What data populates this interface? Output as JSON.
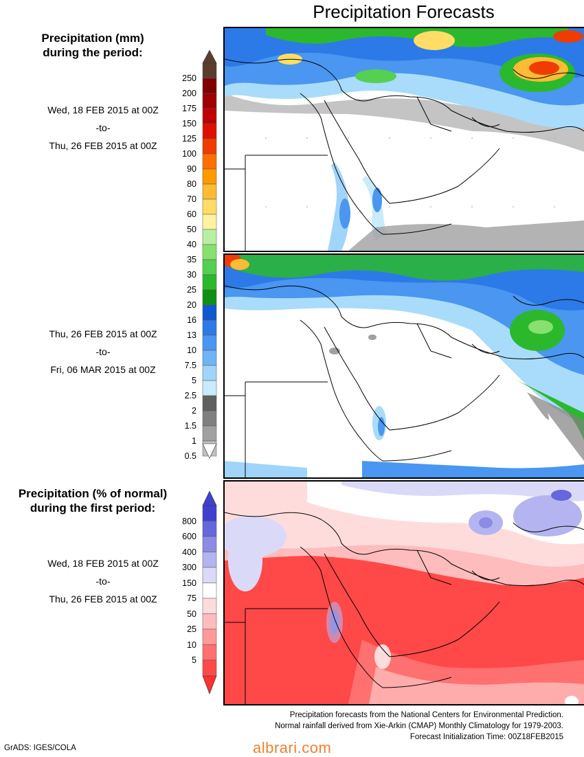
{
  "title": "Precipitation Forecasts",
  "section1": {
    "heading_line1": "Precipitation (mm)",
    "heading_line2": "during the period:"
  },
  "period1": {
    "start": "Wed, 18 FEB 2015 at 00Z",
    "sep": "-to-",
    "end": "Thu, 26 FEB 2015 at 00Z"
  },
  "period2": {
    "start": "Thu, 26 FEB 2015 at 00Z",
    "sep": "-to-",
    "end": "Fri, 06 MAR 2015 at 00Z"
  },
  "section2": {
    "heading_line1": "Precipitation (% of normal)",
    "heading_line2": "during the first period:"
  },
  "period3": {
    "start": "Wed, 18 FEB 2015 at 00Z",
    "sep": "-to-",
    "end": "Thu, 26 FEB 2015 at 00Z"
  },
  "precip_scale": {
    "labels": [
      "250",
      "200",
      "175",
      "150",
      "125",
      "100",
      "90",
      "80",
      "70",
      "60",
      "50",
      "40",
      "35",
      "30",
      "25",
      "20",
      "16",
      "13",
      "10",
      "7.5",
      "5",
      "2.5",
      "2",
      "1.5",
      "1",
      "0.5"
    ],
    "colors": [
      "#5a3d2e",
      "#800000",
      "#a00000",
      "#c00000",
      "#e01000",
      "#f03c00",
      "#ff6e00",
      "#ff9900",
      "#ffbb33",
      "#ffdd66",
      "#fff2a0",
      "#b8f0a0",
      "#88e070",
      "#55d050",
      "#2cb82c",
      "#109010",
      "#1058d0",
      "#2c7ae8",
      "#4a96f0",
      "#70b4f6",
      "#a0d4fa",
      "#c8ecfc",
      "#606060",
      "#808080",
      "#a0a0a0",
      "#c0c0c0"
    ]
  },
  "pct_scale": {
    "labels": [
      "800",
      "600",
      "400",
      "300",
      "150",
      "75",
      "50",
      "25",
      "10",
      "5"
    ],
    "colors": [
      "#4040d0",
      "#6666dd",
      "#8c8ce6",
      "#b4b4f0",
      "#dadaf8",
      "#ffffff",
      "#ffdcdc",
      "#ffbcbc",
      "#ff9a9a",
      "#ff7070",
      "#ff4848"
    ]
  },
  "credits": {
    "line1": "Precipitation forecasts from the National Centers for Environmental Prediction.",
    "line2": "Normal rainfall derived from Xie-Arkin (CMAP) Monthly Climatology for 1979-2003.",
    "line3": "Forecast Initialization Time: 00Z18FEB2015"
  },
  "software": "GrADS: IGES/COLA",
  "watermark": "albrari.com"
}
